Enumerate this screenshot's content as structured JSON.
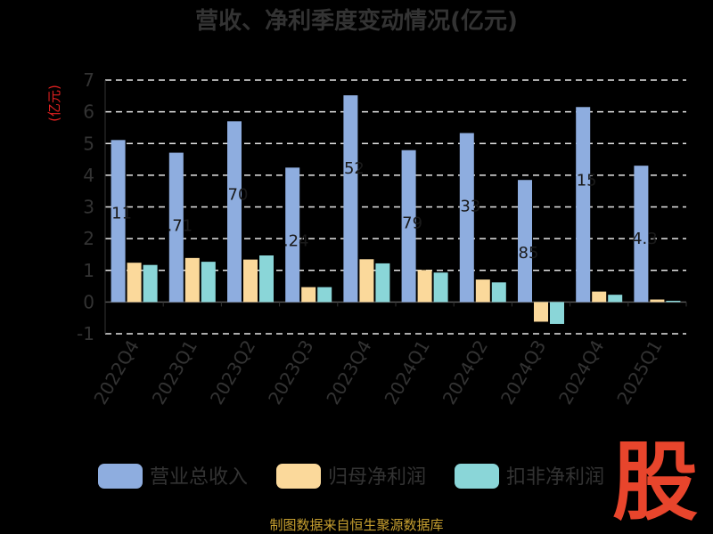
{
  "chart_data": {
    "type": "bar",
    "title": "营收、净利季度变动情况(亿元)",
    "y_unit_label": "(亿元)",
    "categories": [
      "2022Q4",
      "2023Q1",
      "2023Q2",
      "2023Q3",
      "2023Q4",
      "2024Q1",
      "2024Q2",
      "2024Q3",
      "2024Q4",
      "2025Q1"
    ],
    "series": [
      {
        "name": "营业总收入",
        "color": "#8eaddf",
        "values": [
          5.11,
          4.71,
          5.7,
          4.24,
          6.52,
          4.79,
          5.33,
          3.85,
          6.15,
          4.3
        ]
      },
      {
        "name": "归母净利润",
        "color": "#fbd99b",
        "values": [
          1.24,
          1.39,
          1.34,
          0.47,
          1.35,
          1.01,
          0.71,
          -0.62,
          0.33,
          0.08
        ]
      },
      {
        "name": "扣非净利润",
        "color": "#8ad6d8",
        "values": [
          1.17,
          1.27,
          1.47,
          0.47,
          1.22,
          0.93,
          0.62,
          -0.69,
          0.23,
          0.04
        ]
      }
    ],
    "data_labels": [
      "11",
      ".71",
      "70",
      ".24",
      "52",
      "79",
      "33",
      "85",
      "15",
      "4.3"
    ],
    "ylim": [
      -1,
      7
    ],
    "yticks": [
      -1,
      0,
      1,
      2,
      3,
      4,
      5,
      6,
      7
    ],
    "grid": true,
    "legend_position": "bottom"
  },
  "source_text": "制图数据来自恒生聚源数据库",
  "logo_text": "股"
}
